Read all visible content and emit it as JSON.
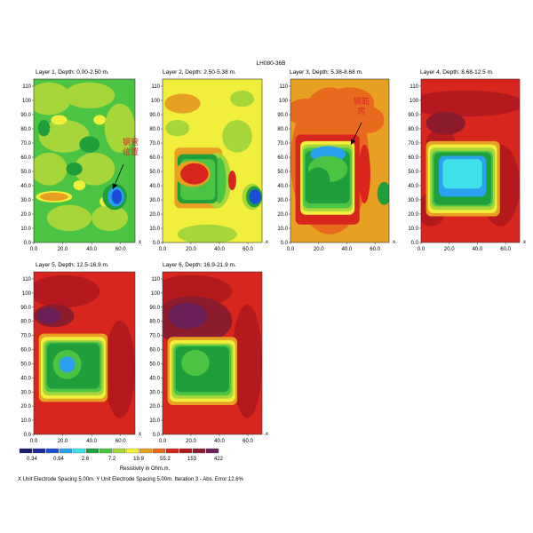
{
  "figure": {
    "top_label": "LH080-36B",
    "colorbar": {
      "colors": [
        "#19196e",
        "#1c2a9c",
        "#1a4ed6",
        "#2aa0ee",
        "#3fe0e8",
        "#1f9e3c",
        "#4cc443",
        "#a6d63a",
        "#f1ee3c",
        "#e7a022",
        "#e76a1f",
        "#d8261e",
        "#b4191e",
        "#8c1c2c",
        "#6a1f56"
      ],
      "labels": [
        "0.34",
        "0.94",
        "2.6",
        "7.2",
        "19.9",
        "55.2",
        "153",
        "422"
      ],
      "title": "Resistivity in Ohm.m."
    },
    "footer": "X Unit Electrode Spacing 5.00m.  Y Unit Electrode Spacing 5.00m.     Iteration 3 - Abs. Error 12.6%"
  },
  "chart_data": [
    {
      "type": "heatmap",
      "title": "Layer 1, Depth: 0.00-2.50 m.",
      "xlabel": "x",
      "xlim": [
        0,
        70
      ],
      "ylim": [
        0,
        115
      ],
      "x_ticks": [
        "0.0",
        "20.0",
        "40.0",
        "60.0"
      ],
      "y_ticks": [
        "0.0",
        "10.0",
        "20.0",
        "30.0",
        "40.0",
        "50.0",
        "60.0",
        "70.0",
        "80.0",
        "90.0",
        "100",
        "110"
      ],
      "annotation": "钢管\n位置"
    },
    {
      "type": "heatmap",
      "title": "Layer 2, Depth: 2.50-5.38 m.",
      "xlabel": "x",
      "xlim": [
        0,
        70
      ],
      "ylim": [
        0,
        115
      ],
      "x_ticks": [
        "0.0",
        "20.0",
        "40.0",
        "60.0"
      ],
      "y_ticks": [
        "0.0",
        "10.0",
        "20.0",
        "30.0",
        "40.0",
        "50.0",
        "60.0",
        "70.0",
        "80.0",
        "90.0",
        "100",
        "110"
      ]
    },
    {
      "type": "heatmap",
      "title": "Layer 3, Depth: 5.38-8.68 m.",
      "xlabel": "x",
      "xlim": [
        0,
        70
      ],
      "ylim": [
        0,
        115
      ],
      "x_ticks": [
        "0.0",
        "20.0",
        "40.0",
        "60.0"
      ],
      "y_ticks": [
        "0.0",
        "10.0",
        "20.0",
        "30.0",
        "40.0",
        "50.0",
        "60.0",
        "70.0",
        "80.0",
        "90.0",
        "100",
        "110"
      ],
      "annotation": "钢筋\n房"
    },
    {
      "type": "heatmap",
      "title": "Layer 4, Depth: 8.68-12.5 m.",
      "xlabel": "x",
      "xlim": [
        0,
        70
      ],
      "ylim": [
        0,
        115
      ],
      "x_ticks": [
        "0.0",
        "20.0",
        "40.0",
        "60.0"
      ],
      "y_ticks": [
        "0.0",
        "10.0",
        "20.0",
        "30.0",
        "40.0",
        "50.0",
        "60.0",
        "70.0",
        "80.0",
        "90.0",
        "100",
        "110"
      ]
    },
    {
      "type": "heatmap",
      "title": "Layer 5, Depth: 12.5-16.9 m.",
      "xlabel": "x",
      "xlim": [
        0,
        70
      ],
      "ylim": [
        0,
        115
      ],
      "x_ticks": [
        "0.0",
        "20.0",
        "40.0",
        "60.0"
      ],
      "y_ticks": [
        "0.0",
        "10.0",
        "20.0",
        "30.0",
        "40.0",
        "50.0",
        "60.0",
        "70.0",
        "80.0",
        "90.0",
        "100",
        "110"
      ]
    },
    {
      "type": "heatmap",
      "title": "Layer 6, Depth: 16.9-21.9 m.",
      "xlabel": "x",
      "xlim": [
        0,
        70
      ],
      "ylim": [
        0,
        115
      ],
      "x_ticks": [
        "0.0",
        "20.0",
        "40.0",
        "60.0"
      ],
      "y_ticks": [
        "0.0",
        "10.0",
        "20.0",
        "30.0",
        "40.0",
        "50.0",
        "60.0",
        "70.0",
        "80.0",
        "90.0",
        "100",
        "110"
      ]
    }
  ]
}
